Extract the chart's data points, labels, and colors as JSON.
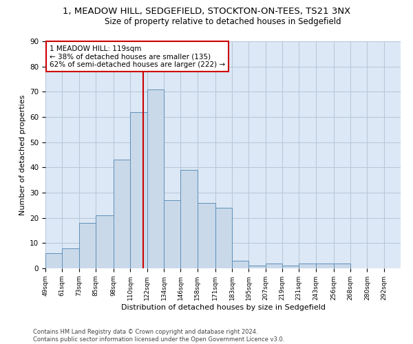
{
  "title1": "1, MEADOW HILL, SEDGEFIELD, STOCKTON-ON-TEES, TS21 3NX",
  "title2": "Size of property relative to detached houses in Sedgefield",
  "xlabel": "Distribution of detached houses by size in Sedgefield",
  "ylabel": "Number of detached properties",
  "footnote": "Contains HM Land Registry data © Crown copyright and database right 2024.\nContains public sector information licensed under the Open Government Licence v3.0.",
  "bin_edges": [
    49,
    61,
    73,
    85,
    98,
    110,
    122,
    134,
    146,
    158,
    171,
    183,
    195,
    207,
    219,
    231,
    243,
    256,
    268,
    280,
    292,
    304
  ],
  "bar_heights": [
    6,
    8,
    18,
    21,
    43,
    62,
    71,
    27,
    39,
    26,
    24,
    3,
    1,
    2,
    1,
    2,
    2,
    2,
    0,
    0,
    0
  ],
  "bar_color": "#c9d9ea",
  "bar_edge_color": "#6090b8",
  "grid_color": "#b8c8da",
  "bg_color": "#dce8f5",
  "vline_x": 119,
  "vline_color": "#cc0000",
  "annotation_line1": "1 MEADOW HILL: 119sqm",
  "annotation_line2": "← 38% of detached houses are smaller (135)",
  "annotation_line3": "62% of semi-detached houses are larger (222) →",
  "annotation_box_color": "#ffffff",
  "annotation_box_edge": "#cc0000",
  "annotation_fontsize": 7.5,
  "ylim": [
    0,
    90
  ],
  "yticks": [
    0,
    10,
    20,
    30,
    40,
    50,
    60,
    70,
    80,
    90
  ],
  "title1_fontsize": 9.5,
  "title2_fontsize": 8.5,
  "xlabel_fontsize": 8,
  "ylabel_fontsize": 8,
  "tick_fontsize": 6.5,
  "tick_labels": [
    "49sqm",
    "61sqm",
    "73sqm",
    "85sqm",
    "98sqm",
    "110sqm",
    "122sqm",
    "134sqm",
    "146sqm",
    "158sqm",
    "171sqm",
    "183sqm",
    "195sqm",
    "207sqm",
    "219sqm",
    "231sqm",
    "243sqm",
    "256sqm",
    "268sqm",
    "280sqm",
    "292sqm"
  ]
}
